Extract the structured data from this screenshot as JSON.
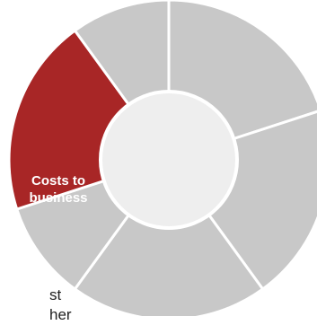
{
  "diagram": {
    "segments": [
      {
        "label": "",
        "highlighted": false
      },
      {
        "label": "",
        "highlighted": false
      },
      {
        "label": "",
        "highlighted": false
      },
      {
        "label": "",
        "highlighted": false
      },
      {
        "label": "Costs to business",
        "label_lines": [
          "Costs to",
          "business"
        ],
        "highlighted": true
      },
      {
        "label": "",
        "highlighted": false
      }
    ],
    "colors": {
      "segment_fill": "#c8c8c8",
      "highlight_fill": "#a82626",
      "center_fill": "#eeeeee",
      "divider": "#ffffff"
    }
  },
  "cutoff_text": {
    "line1": "st",
    "line2": "her"
  }
}
